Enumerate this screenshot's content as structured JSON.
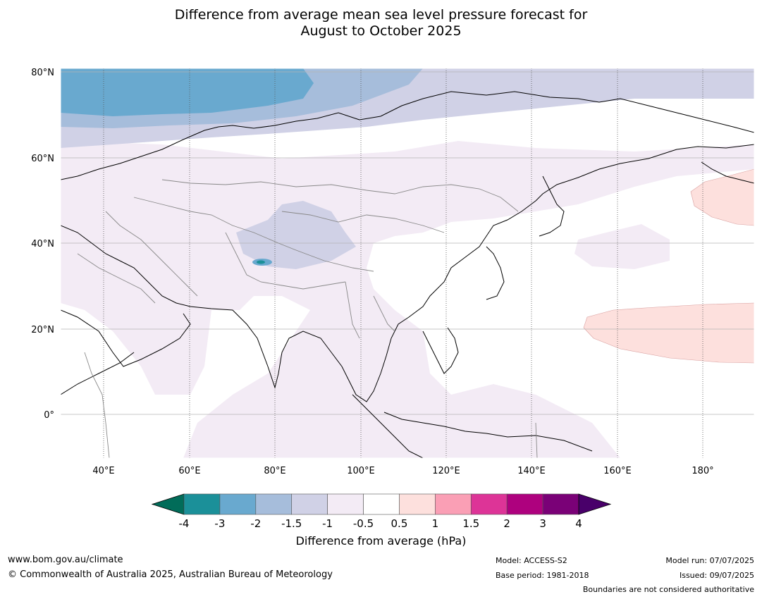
{
  "title": {
    "line1": "Difference from average mean sea level pressure forecast for",
    "line2": "August to October 2025"
  },
  "map": {
    "lat_labels": [
      "80°N",
      "60°N",
      "40°N",
      "20°N",
      "0°"
    ],
    "lon_labels": [
      "40°E",
      "60°E",
      "80°E",
      "100°E",
      "120°E",
      "140°E",
      "160°E",
      "180°"
    ]
  },
  "legend": {
    "ticks": [
      "-4",
      "-3",
      "-2",
      "-1.5",
      "-1",
      "-0.5",
      "0.5",
      "1",
      "1.5",
      "2",
      "3",
      "4"
    ],
    "colors": [
      "#1b9099",
      "#69a9cf",
      "#a6bddb",
      "#d0d1e6",
      "#f3ebf5",
      "#ffffff",
      "#fde0dd",
      "#fa9fb5",
      "#dd3497",
      "#ae017e",
      "#7a0177"
    ],
    "low_extend_color": "#016c59",
    "high_extend_color": "#49006a",
    "label": "Difference from average (hPa)"
  },
  "footer": {
    "website": "www.bom.gov.au/climate",
    "copyright": "© Commonwealth of Australia 2025, Australian Bureau of Meteorology",
    "model": "Model: ACCESS-S2",
    "base_period": "Base period: 1981-2018",
    "model_run": "Model run: 07/07/2025",
    "issued": "Issued: 09/07/2025",
    "disclaimer": "Boundaries are not considered authoritative"
  }
}
